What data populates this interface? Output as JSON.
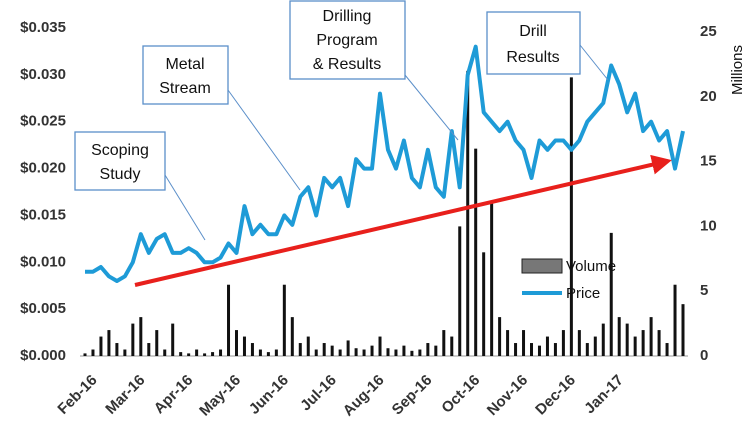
{
  "chart_data": {
    "type": "line_bar",
    "y2_title": "Millions",
    "categories": [
      "Feb-16",
      null,
      null,
      null,
      null,
      null,
      "Mar-16",
      null,
      null,
      null,
      null,
      null,
      "Apr-16",
      null,
      null,
      null,
      null,
      null,
      "May-16",
      null,
      null,
      null,
      null,
      null,
      "Jun-16",
      null,
      null,
      null,
      null,
      null,
      "Jul-16",
      null,
      null,
      null,
      null,
      null,
      "Aug-16",
      null,
      null,
      null,
      null,
      null,
      "Sep-16",
      null,
      null,
      null,
      null,
      null,
      "Oct-16",
      null,
      null,
      null,
      null,
      null,
      "Nov-16",
      null,
      null,
      null,
      null,
      null,
      "Dec-16",
      null,
      null,
      null,
      null,
      null,
      "Jan-17",
      null,
      null,
      null,
      null,
      null,
      null,
      null,
      null,
      null
    ],
    "series": [
      {
        "name": "Volume",
        "type": "bar",
        "axis": "y2",
        "color": "#111111",
        "legend_color": "#777777",
        "values": [
          0.2,
          0.5,
          1.5,
          2,
          1,
          0.5,
          2.5,
          3,
          1,
          2,
          0.5,
          2.5,
          0.3,
          0.2,
          0.5,
          0.2,
          0.3,
          0.5,
          5.5,
          2,
          1.5,
          1,
          0.5,
          0.3,
          0.5,
          5.5,
          3,
          1,
          1.5,
          0.5,
          1,
          0.8,
          0.5,
          1.2,
          0.6,
          0.5,
          0.8,
          1.5,
          0.6,
          0.5,
          0.8,
          0.4,
          0.5,
          1,
          0.8,
          2,
          1.5,
          10,
          22,
          16,
          8,
          12,
          3,
          2,
          1,
          2,
          1,
          0.8,
          1.5,
          1,
          2,
          21.5,
          2,
          1,
          1.5,
          2.5,
          9.5,
          3,
          2.5,
          1.5,
          2,
          3,
          2,
          1,
          5.5,
          4
        ]
      },
      {
        "name": "Price",
        "type": "line",
        "axis": "y",
        "color": "#1e9bd7",
        "values": [
          0.009,
          0.009,
          0.0095,
          0.0085,
          0.008,
          0.0085,
          0.01,
          0.013,
          0.011,
          0.0125,
          0.013,
          0.011,
          0.011,
          0.0115,
          0.011,
          0.01,
          0.01,
          0.0105,
          0.012,
          0.011,
          0.016,
          0.013,
          0.014,
          0.013,
          0.013,
          0.015,
          0.014,
          0.017,
          0.018,
          0.015,
          0.019,
          0.018,
          0.019,
          0.016,
          0.021,
          0.02,
          0.02,
          0.028,
          0.022,
          0.02,
          0.023,
          0.019,
          0.018,
          0.022,
          0.018,
          0.017,
          0.024,
          0.018,
          0.03,
          0.033,
          0.026,
          0.025,
          0.024,
          0.025,
          0.023,
          0.022,
          0.019,
          0.023,
          0.022,
          0.023,
          0.023,
          0.022,
          0.023,
          0.025,
          0.026,
          0.027,
          0.031,
          0.029,
          0.026,
          0.028,
          0.024,
          0.025,
          0.023,
          0.024,
          0.02,
          0.024
        ]
      }
    ],
    "ylim": [
      0,
      0.035
    ],
    "yticks": [
      {
        "value": 0,
        "label": "$0.000"
      },
      {
        "value": 0.005,
        "label": "$0.005"
      },
      {
        "value": 0.01,
        "label": "$0.010"
      },
      {
        "value": 0.015,
        "label": "$0.015"
      },
      {
        "value": 0.02,
        "label": "$0.020"
      },
      {
        "value": 0.025,
        "label": "$0.025"
      },
      {
        "value": 0.03,
        "label": "$0.030"
      },
      {
        "value": 0.035,
        "label": "$0.035"
      }
    ],
    "y2lim": [
      0,
      25
    ],
    "y2ticks": [
      0,
      5,
      10,
      15,
      20,
      25
    ],
    "annotations": [
      {
        "lines": [
          "Scoping",
          "Study"
        ]
      },
      {
        "lines": [
          "Metal",
          "Stream"
        ]
      },
      {
        "lines": [
          "Drilling",
          "Program",
          "& Results"
        ]
      },
      {
        "lines": [
          "Drill",
          "Results"
        ]
      }
    ]
  }
}
